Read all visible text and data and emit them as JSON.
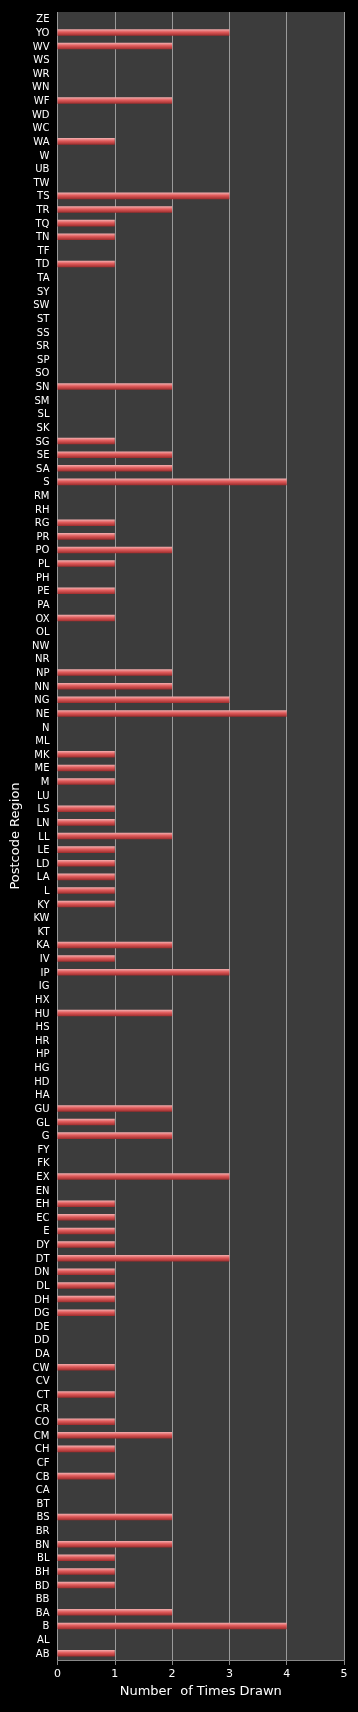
{
  "chart_data": {
    "type": "bar",
    "orientation": "horizontal",
    "xlabel": "Number  of Times Drawn",
    "ylabel": "Postcode Region",
    "categories": [
      "ZE",
      "YO",
      "WV",
      "WS",
      "WR",
      "WN",
      "WF",
      "WD",
      "WC",
      "WA",
      "W",
      "UB",
      "TW",
      "TS",
      "TR",
      "TQ",
      "TN",
      "TF",
      "TD",
      "TA",
      "SY",
      "SW",
      "ST",
      "SS",
      "SR",
      "SP",
      "SO",
      "SN",
      "SM",
      "SL",
      "SK",
      "SG",
      "SE",
      "SA",
      "S",
      "RM",
      "RH",
      "RG",
      "PR",
      "PO",
      "PL",
      "PH",
      "PE",
      "PA",
      "OX",
      "OL",
      "NW",
      "NR",
      "NP",
      "NN",
      "NG",
      "NE",
      "N",
      "ML",
      "MK",
      "ME",
      "M",
      "LU",
      "LS",
      "LN",
      "LL",
      "LE",
      "LD",
      "LA",
      "L",
      "KY",
      "KW",
      "KT",
      "KA",
      "IV",
      "IP",
      "IG",
      "HX",
      "HU",
      "HS",
      "HR",
      "HP",
      "HG",
      "HD",
      "HA",
      "GU",
      "GL",
      "G",
      "FY",
      "FK",
      "EX",
      "EN",
      "EH",
      "EC",
      "E",
      "DY",
      "DT",
      "DN",
      "DL",
      "DH",
      "DG",
      "DE",
      "DD",
      "DA",
      "CW",
      "CV",
      "CT",
      "CR",
      "CO",
      "CM",
      "CH",
      "CF",
      "CB",
      "CA",
      "BT",
      "BS",
      "BR",
      "BN",
      "BL",
      "BH",
      "BD",
      "BB",
      "BA",
      "B",
      "AL",
      "AB"
    ],
    "values": [
      0,
      3,
      2,
      0,
      0,
      0,
      2,
      0,
      0,
      1,
      0,
      0,
      0,
      3,
      2,
      1,
      1,
      0,
      1,
      0,
      0,
      0,
      0,
      0,
      0,
      0,
      0,
      2,
      0,
      0,
      0,
      1,
      2,
      2,
      4,
      0,
      0,
      1,
      1,
      2,
      1,
      0,
      1,
      0,
      1,
      0,
      0,
      0,
      2,
      2,
      3,
      4,
      0,
      0,
      1,
      1,
      1,
      0,
      1,
      1,
      2,
      1,
      1,
      1,
      1,
      1,
      0,
      0,
      2,
      1,
      3,
      0,
      0,
      2,
      0,
      0,
      0,
      0,
      0,
      0,
      2,
      1,
      2,
      0,
      0,
      3,
      0,
      1,
      1,
      1,
      1,
      3,
      1,
      1,
      1,
      1,
      0,
      0,
      0,
      1,
      0,
      1,
      0,
      1,
      2,
      1,
      0,
      1,
      0,
      0,
      2,
      0,
      2,
      1,
      1,
      1,
      0,
      2,
      4,
      0,
      1
    ],
    "color": "#e05a5a",
    "xlim": [
      0,
      5
    ],
    "xticks": [
      0,
      1,
      2,
      3,
      4,
      5
    ],
    "grid": "x"
  }
}
